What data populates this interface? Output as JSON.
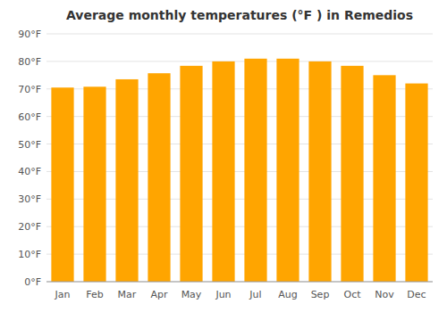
{
  "chart_data": {
    "type": "bar",
    "title": "Average monthly temperatures (°F ) in Remedios",
    "categories": [
      "Jan",
      "Feb",
      "Mar",
      "Apr",
      "May",
      "Jun",
      "Jul",
      "Aug",
      "Sep",
      "Oct",
      "Nov",
      "Dec"
    ],
    "values": [
      70.5,
      70.8,
      73.5,
      75.7,
      78.4,
      80.0,
      81.0,
      81.0,
      80.0,
      78.4,
      75.0,
      72.0
    ],
    "color": "#FFA500",
    "ylim": [
      0,
      90
    ],
    "yticks": [
      {
        "value": 0,
        "label": "0°F"
      },
      {
        "value": 10,
        "label": "10°F"
      },
      {
        "value": 20,
        "label": "20°F"
      },
      {
        "value": 30,
        "label": "30°F"
      },
      {
        "value": 40,
        "label": "40°F"
      },
      {
        "value": 50,
        "label": "50°F"
      },
      {
        "value": 60,
        "label": "60°F"
      },
      {
        "value": 70,
        "label": "70°F"
      },
      {
        "value": 80,
        "label": "80°F"
      },
      {
        "value": 90,
        "label": "90°F"
      }
    ],
    "grid": true
  }
}
